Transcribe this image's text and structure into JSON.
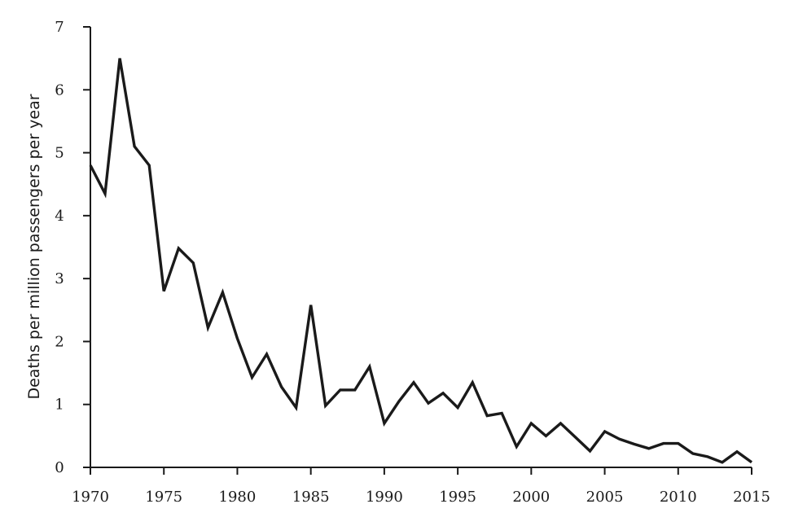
{
  "chart_data": {
    "type": "line",
    "title": "",
    "xlabel": "",
    "ylabel": "Deaths per million passengers per year",
    "xlim": [
      1970,
      2015
    ],
    "ylim": [
      0,
      7
    ],
    "x_ticks": [
      1970,
      1975,
      1980,
      1985,
      1990,
      1995,
      2000,
      2005,
      2010,
      2015
    ],
    "y_ticks": [
      0,
      1,
      2,
      3,
      4,
      5,
      6,
      7
    ],
    "grid": false,
    "legend": "none",
    "line_color": "#1a1a1a",
    "series": [
      {
        "x": [
          1970,
          1971,
          1972,
          1973,
          1974,
          1975,
          1976,
          1977,
          1978,
          1979,
          1980,
          1981,
          1982,
          1983,
          1984,
          1985,
          1986,
          1987,
          1988,
          1989,
          1990,
          1991,
          1992,
          1993,
          1994,
          1995,
          1996,
          1997,
          1998,
          1999,
          2000,
          2001,
          2002,
          2003,
          2004,
          2005,
          2006,
          2007,
          2008,
          2009,
          2010,
          2011,
          2012,
          2013,
          2014,
          2015
        ],
        "values": [
          4.8,
          4.35,
          6.5,
          5.1,
          4.8,
          2.8,
          3.48,
          3.25,
          2.22,
          2.78,
          2.05,
          1.43,
          1.8,
          1.28,
          0.95,
          2.58,
          0.98,
          1.23,
          1.23,
          1.6,
          0.7,
          1.05,
          1.35,
          1.02,
          1.18,
          0.95,
          1.35,
          0.82,
          0.86,
          0.33,
          0.7,
          0.5,
          0.7,
          0.48,
          0.26,
          0.57,
          0.45,
          0.37,
          0.3,
          0.38,
          0.38,
          0.22,
          0.17,
          0.08,
          0.25,
          0.08
        ]
      }
    ]
  }
}
